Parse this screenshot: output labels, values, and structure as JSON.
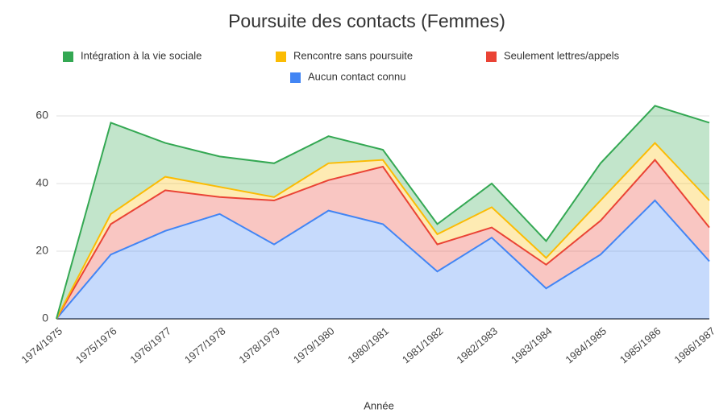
{
  "chart_data": {
    "type": "stacked_area",
    "title": "Poursuite des contacts (Femmes)",
    "x_label": "Année",
    "categories": [
      "1974/1975",
      "1975/1976",
      "1976/1977",
      "1977/1978",
      "1978/1979",
      "1979/1980",
      "1980/1981",
      "1981/1982",
      "1982/1983",
      "1983/1984",
      "1984/1985",
      "1985/1986",
      "1986/1987"
    ],
    "series": [
      {
        "name": "Aucun contact connu",
        "color": "#4285f4",
        "values": [
          0,
          19,
          26,
          31,
          22,
          32,
          28,
          14,
          24,
          9,
          19,
          35,
          17
        ]
      },
      {
        "name": "Seulement lettres/appels",
        "color": "#ea4335",
        "values": [
          0,
          9,
          12,
          5,
          13,
          9,
          17,
          8,
          3,
          7,
          10,
          12,
          10
        ]
      },
      {
        "name": "Rencontre sans poursuite",
        "color": "#fbbc04",
        "values": [
          0,
          3,
          4,
          3,
          1,
          5,
          2,
          3,
          6,
          2,
          6,
          5,
          8
        ]
      },
      {
        "name": "Intégration à la vie sociale",
        "color": "#34a853",
        "values": [
          0,
          27,
          10,
          9,
          10,
          8,
          3,
          3,
          7,
          5,
          11,
          11,
          23
        ]
      }
    ],
    "ylim": [
      0,
      70
    ],
    "yticks": [
      0,
      20,
      40,
      60
    ],
    "grid": true
  }
}
